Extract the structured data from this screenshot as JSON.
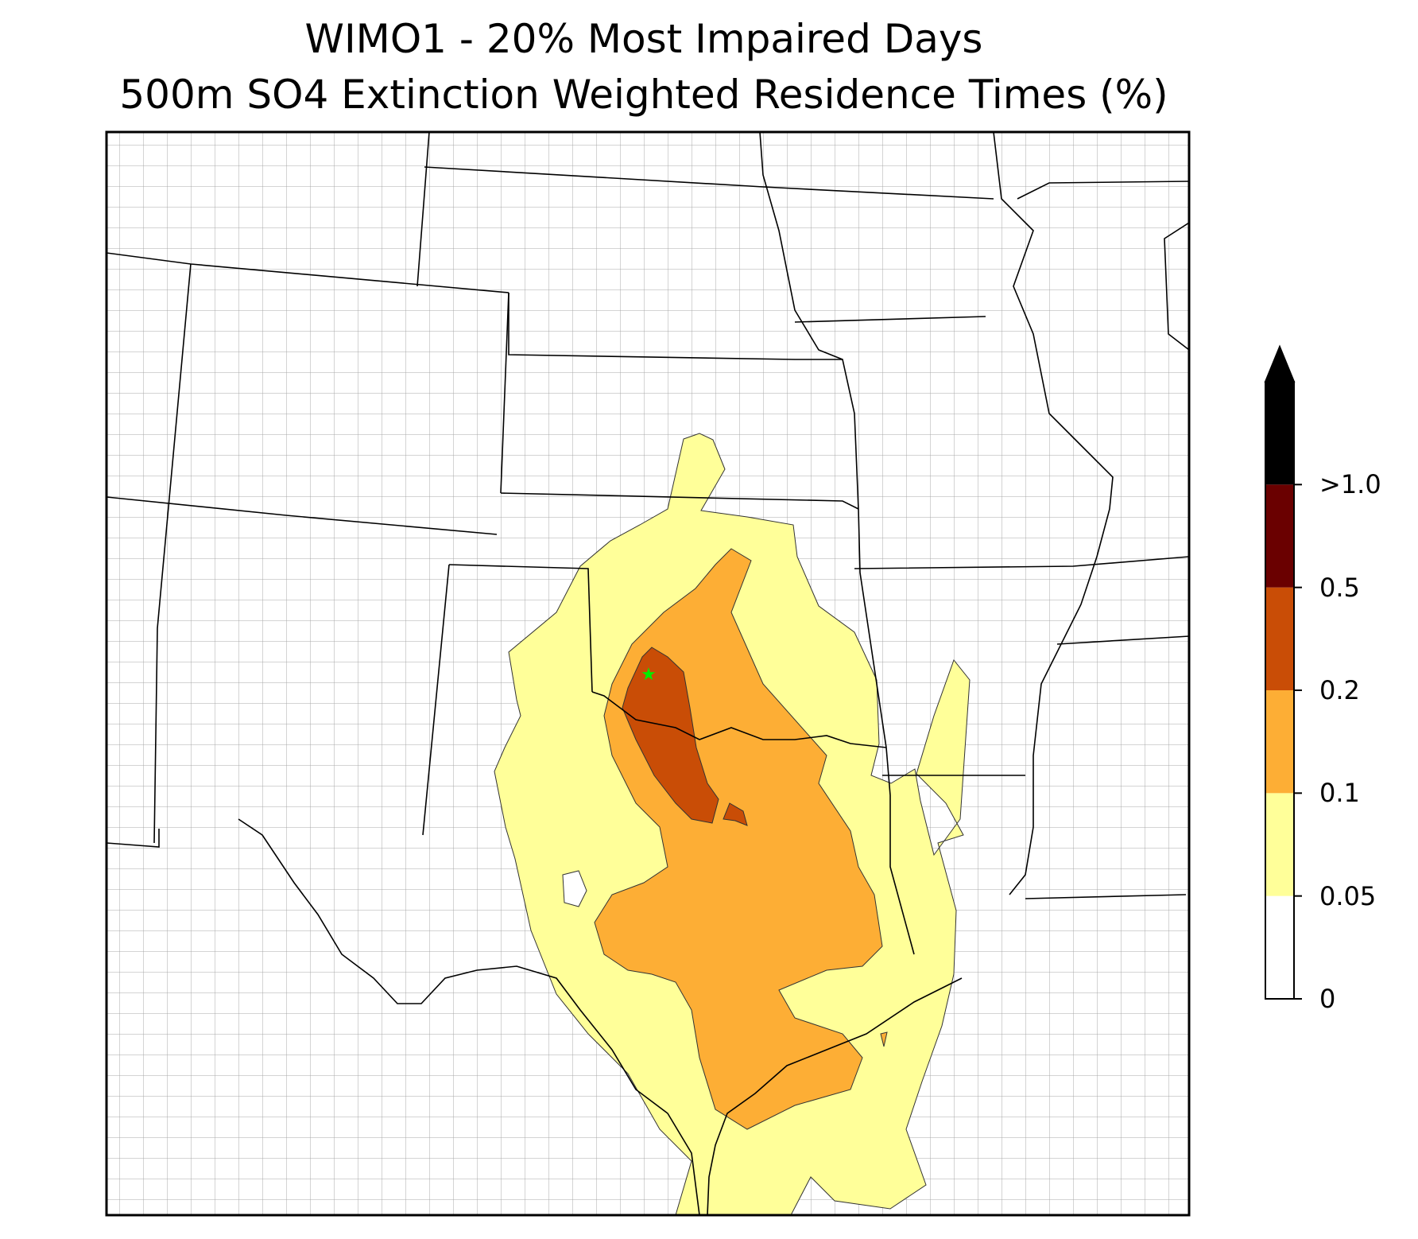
{
  "title": {
    "line1": "WIMO1 - 20% Most Impaired Days",
    "line2": "500m SO4 Extinction Weighted Residence Times (%)"
  },
  "colorbar": {
    "bins": [
      {
        "from": "0",
        "to": "0.05",
        "color": "#ffffff"
      },
      {
        "from": "0.05",
        "to": "0.1",
        "color": "#ffff99"
      },
      {
        "from": "0.1",
        "to": "0.2",
        "color": "#fdae35"
      },
      {
        "from": "0.2",
        "to": "0.5",
        "color": "#c94d06"
      },
      {
        "from": "0.5",
        "to": ">1.0",
        "color": "#6a0000"
      },
      {
        "from": ">1.0",
        "to": "extend",
        "color": "#000000"
      }
    ],
    "ticks": [
      "0",
      "0.05",
      "0.1",
      "0.2",
      "0.5",
      ">1.0"
    ],
    "extend": "max"
  },
  "site_marker": {
    "name": "WIMO1",
    "symbol": "star",
    "color": "#00ee00"
  },
  "colors": {
    "state_border": "#000000",
    "county_border": "#a8a8a8",
    "contour_edge": "#333333"
  }
}
